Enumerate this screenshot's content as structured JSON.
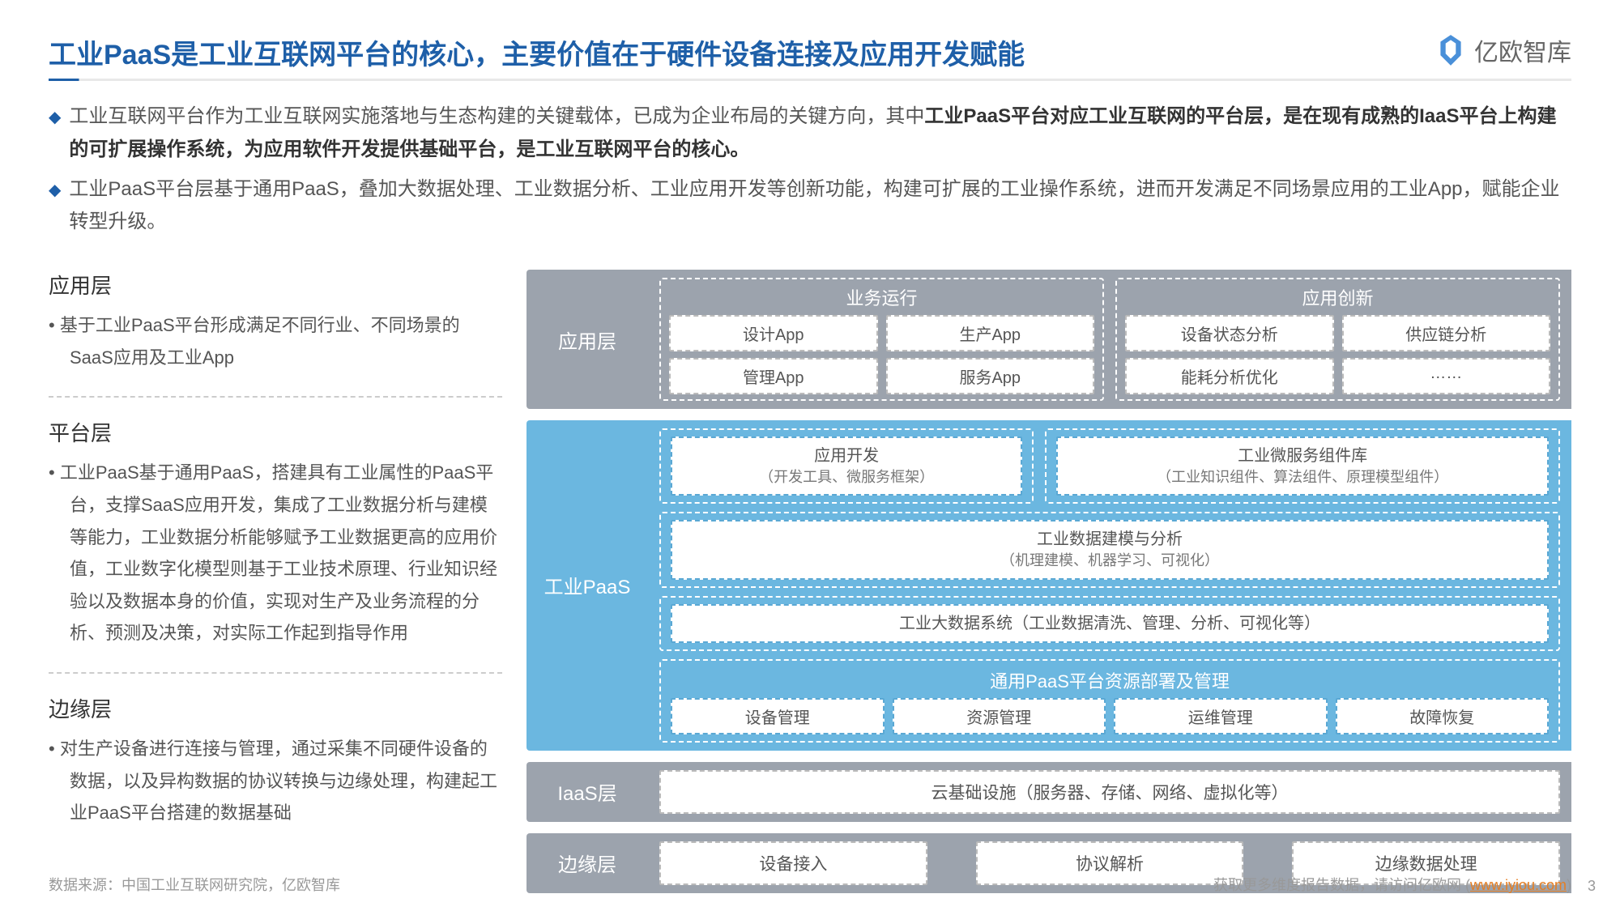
{
  "title": "工业PaaS是工业互联网平台的核心，主要价值在于硬件设备连接及应用开发赋能",
  "logo_text": "亿欧智库",
  "bullets": [
    "工业互联网平台作为工业互联网实施落地与生态构建的关键载体，已成为企业布局的关键方向，其中<b>工业PaaS平台对应工业互联网的平台层，是在现有成熟的IaaS平台上构建的可扩展操作系统，为应用软件开发提供基础平台，是工业互联网平台的核心。</b>",
    "工业PaaS平台层基于通用PaaS，叠加大数据处理、工业数据分析、工业应用开发等创新功能，构建可扩展的工业操作系统，进而开发满足不同场景应用的工业App，赋能企业转型升级。"
  ],
  "left": {
    "app": {
      "title": "应用层",
      "desc": "基于工业PaaS平台形成满足不同行业、不同场景的SaaS应用及工业App"
    },
    "platform": {
      "title": "平台层",
      "desc": "工业PaaS基于通用PaaS，搭建具有工业属性的PaaS平台，支撑SaaS应用开发，集成了工业数据分析与建模等能力，工业数据分析能够赋予工业数据更高的应用价值，工业数字化模型则基于工业技术原理、行业知识经验以及数据本身的价值，实现对生产及业务流程的分析、预测及决策，对实际工作起到指导作用"
    },
    "edge": {
      "title": "边缘层",
      "desc": "对生产设备进行连接与管理，通过采集不同硬件设备的数据，以及异构数据的协议转换与边缘处理，构建起工业PaaS平台搭建的数据基础"
    }
  },
  "diagram": {
    "app_layer": {
      "label": "应用层",
      "biz": {
        "header": "业务运行",
        "row1": [
          "设计App",
          "生产App"
        ],
        "row2": [
          "管理App",
          "服务App"
        ]
      },
      "innov": {
        "header": "应用创新",
        "row1": [
          "设备状态分析",
          "供应链分析"
        ],
        "row2": [
          "能耗分析优化",
          "……"
        ]
      }
    },
    "paas_layer": {
      "label": "工业PaaS",
      "dev": {
        "title": "应用开发",
        "sub": "（开发工具、微服务框架）"
      },
      "micro": {
        "title": "工业微服务组件库",
        "sub": "（工业知识组件、算法组件、原理模型组件）"
      },
      "model": {
        "title": "工业数据建模与分析",
        "sub": "（机理建模、机器学习、可视化）"
      },
      "bigdata": "工业大数据系统（工业数据清洗、管理、分析、可视化等）",
      "generic": {
        "header": "通用PaaS平台资源部署及管理",
        "items": [
          "设备管理",
          "资源管理",
          "运维管理",
          "故障恢复"
        ]
      }
    },
    "iaas_layer": {
      "label": "IaaS层",
      "content": "云基础设施（服务器、存储、网络、虚拟化等）"
    },
    "edge_layer": {
      "label": "边缘层",
      "items": [
        "设备接入",
        "协议解析",
        "边缘数据处理"
      ]
    }
  },
  "footer": {
    "source": "数据来源：中国工业互联网研究院，亿欧智库",
    "more": "获取更多维度报告数据，请访问亿欧网 (",
    "url": "www.iyiou.com",
    "close": ")",
    "page": "3"
  },
  "colors": {
    "title": "#1e5fa8",
    "gray": "#9ca3ad",
    "blue": "#6bb7e0",
    "box_border_gray": "#bbb",
    "box_border_blue": "#5aa8d4"
  }
}
